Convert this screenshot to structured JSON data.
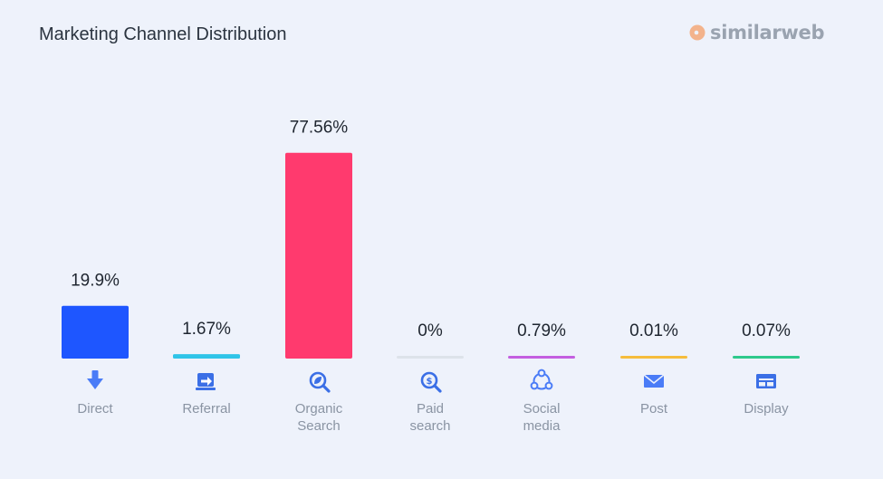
{
  "header": {
    "title": "Marketing Channel Distribution",
    "brand": "similarweb"
  },
  "colors": {
    "background": "#eef2fb",
    "brand_logo": "#9aa3b0"
  },
  "chart_data": {
    "type": "bar",
    "title": "Marketing Channel Distribution",
    "xlabel": "",
    "ylabel": "",
    "ylim": [
      0,
      100
    ],
    "grid": false,
    "legend": "none",
    "categories": [
      "Direct",
      "Referral",
      "Organic Search",
      "Paid search",
      "Social media",
      "Post",
      "Display"
    ],
    "category_lines": [
      [
        "Direct"
      ],
      [
        "Referral"
      ],
      [
        "Organic",
        "Search"
      ],
      [
        "Paid",
        "search"
      ],
      [
        "Social",
        "media"
      ],
      [
        "Post"
      ],
      [
        "Display"
      ]
    ],
    "values": [
      19.9,
      1.67,
      77.56,
      0,
      0.79,
      0.01,
      0.07
    ],
    "value_labels": [
      "19.9%",
      "1.67%",
      "77.56%",
      "0%",
      "0.79%",
      "0.01%",
      "0.07%"
    ],
    "colors": [
      "#1e56ff",
      "#2fc4e8",
      "#ff3a6e",
      "#dde3ea",
      "#c45fe0",
      "#f6bd3c",
      "#2ec98c"
    ],
    "icons": [
      "arrow-down-icon",
      "referral-arrow-icon",
      "organic-search-icon",
      "paid-search-icon",
      "social-network-icon",
      "mail-icon",
      "display-window-icon"
    ]
  }
}
